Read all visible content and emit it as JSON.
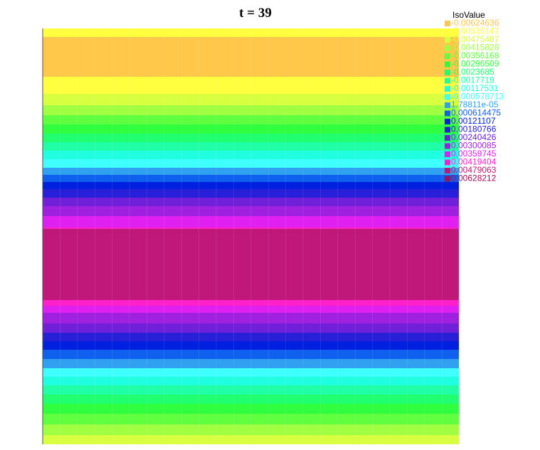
{
  "chart_data": {
    "type": "contour",
    "title": "t = 39",
    "legend_title": "IsoValue",
    "levels": [
      -0.00624636,
      -0.00535147,
      -0.00475487,
      -0.00415828,
      -0.00356168,
      -0.00296509,
      -0.0023685,
      -0.0017719,
      -0.00117531,
      -0.000578713,
      {
        "value": 1.78811e-05,
        "label": "1.78811e-05"
      },
      0.000614475,
      0.00121107,
      0.00180766,
      0.00240426,
      0.00300085,
      0.00359745,
      0.00419404,
      0.00479063,
      0.00628212
    ],
    "colors": [
      "#ffc84a",
      "#ffff40",
      "#d8ff40",
      "#a0ff40",
      "#60ff40",
      "#30ff40",
      "#20ff70",
      "#20ffa8",
      "#20ffe0",
      "#40ffff",
      "#30a0f0",
      "#1060f0",
      "#0020e0",
      "#2820d8",
      "#7020d8",
      "#a020e0",
      "#e020f0",
      "#ff20c8",
      "#c0187a",
      "#a0105a"
    ]
  }
}
